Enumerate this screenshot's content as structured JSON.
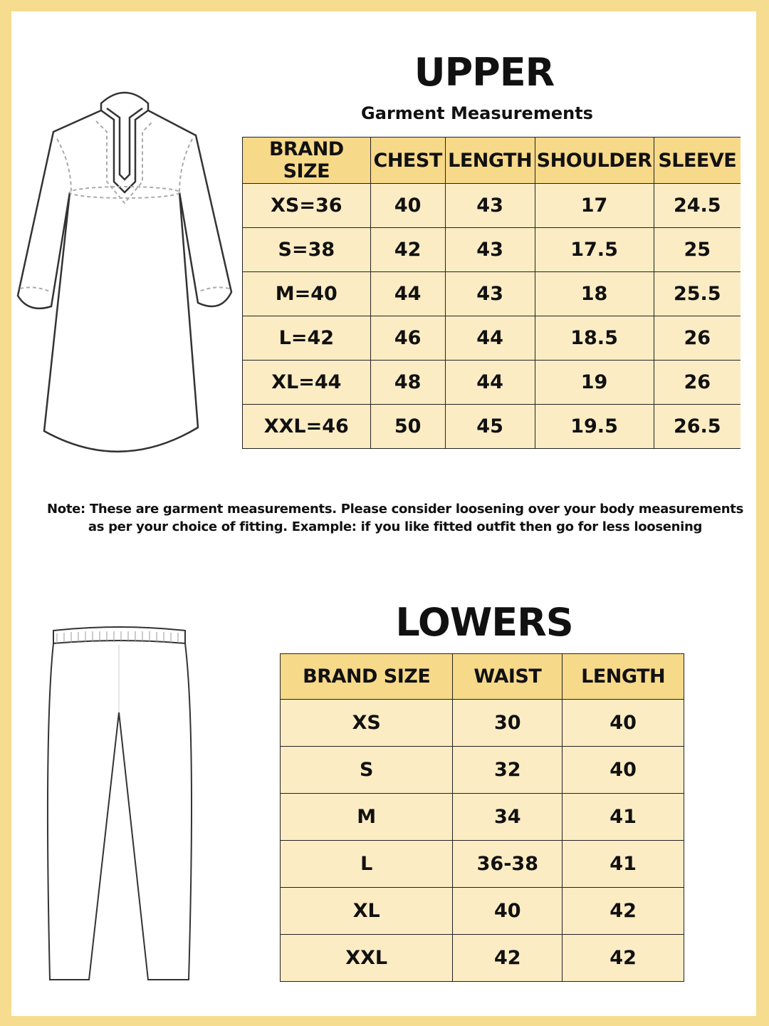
{
  "colors": {
    "border": "#f6dc8e",
    "header": "#f7d98a",
    "row": "#fbecc4"
  },
  "upper": {
    "title": "UPPER",
    "subtitle": "Garment Measurements",
    "headers": [
      "BRAND SIZE",
      "CHEST",
      "LENGTH",
      "SHOULDER",
      "SLEEVE"
    ],
    "rows": [
      [
        "XS=36",
        "40",
        "43",
        "17",
        "24.5"
      ],
      [
        "S=38",
        "42",
        "43",
        "17.5",
        "25"
      ],
      [
        "M=40",
        "44",
        "43",
        "18",
        "25.5"
      ],
      [
        "L=42",
        "46",
        "44",
        "18.5",
        "26"
      ],
      [
        "XL=44",
        "48",
        "44",
        "19",
        "26"
      ],
      [
        "XXL=46",
        "50",
        "45",
        "19.5",
        "26.5"
      ]
    ]
  },
  "note": {
    "line1": "Note: These are garment measurements. Please consider loosening over your body measurements",
    "line2": "as per your choice of fitting. Example: if you like fitted outfit then go for less loosening"
  },
  "lowers": {
    "title": "LOWERS",
    "headers": [
      "BRAND SIZE",
      "WAIST",
      "LENGTH"
    ],
    "rows": [
      [
        "XS",
        "30",
        "40"
      ],
      [
        "S",
        "32",
        "40"
      ],
      [
        "M",
        "34",
        "41"
      ],
      [
        "L",
        "36-38",
        "41"
      ],
      [
        "XL",
        "40",
        "42"
      ],
      [
        "XXL",
        "42",
        "42"
      ]
    ]
  }
}
